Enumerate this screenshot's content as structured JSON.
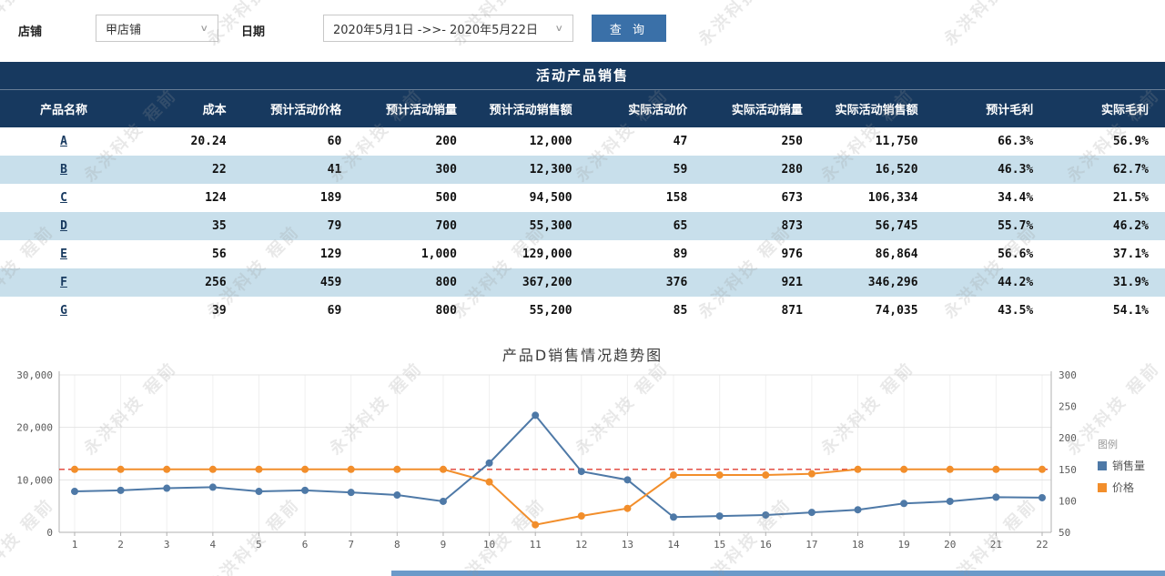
{
  "watermark": "永洪科技 程前",
  "colors": {
    "table_header_bg": "#17395f",
    "row_stripe": "#c8dfeb",
    "button_bg": "#3a70a8",
    "link": "#17395f"
  },
  "filters": {
    "store_label": "店铺",
    "store_value": "甲店铺",
    "date_label": "日期",
    "date_value": "2020年5月1日 ->>- 2020年5月22日",
    "query_button": "查 询"
  },
  "table": {
    "title": "活动产品销售",
    "columns": [
      "产品名称",
      "成本",
      "预计活动价格",
      "预计活动销量",
      "预计活动销售额",
      "实际活动价",
      "实际活动销量",
      "实际活动销售额",
      "预计毛利",
      "实际毛利"
    ],
    "rows": [
      [
        "A",
        "20.24",
        "60",
        "200",
        "12,000",
        "47",
        "250",
        "11,750",
        "66.3%",
        "56.9%"
      ],
      [
        "B",
        "22",
        "41",
        "300",
        "12,300",
        "59",
        "280",
        "16,520",
        "46.3%",
        "62.7%"
      ],
      [
        "C",
        "124",
        "189",
        "500",
        "94,500",
        "158",
        "673",
        "106,334",
        "34.4%",
        "21.5%"
      ],
      [
        "D",
        "35",
        "79",
        "700",
        "55,300",
        "65",
        "873",
        "56,745",
        "55.7%",
        "46.2%"
      ],
      [
        "E",
        "56",
        "129",
        "1,000",
        "129,000",
        "89",
        "976",
        "86,864",
        "56.6%",
        "37.1%"
      ],
      [
        "F",
        "256",
        "459",
        "800",
        "367,200",
        "376",
        "921",
        "346,296",
        "44.2%",
        "31.9%"
      ],
      [
        "G",
        "39",
        "69",
        "800",
        "55,200",
        "85",
        "871",
        "74,035",
        "43.5%",
        "54.1%"
      ]
    ]
  },
  "chart_data": {
    "type": "line",
    "title": "产品D销售情况趋势图",
    "legend_title": "图例",
    "x": [
      1,
      2,
      3,
      4,
      5,
      6,
      7,
      8,
      9,
      10,
      11,
      12,
      13,
      14,
      15,
      16,
      17,
      18,
      19,
      20,
      21,
      22
    ],
    "series": [
      {
        "name": "销售量",
        "axis": "left",
        "color": "#4e79a7",
        "values": [
          7800,
          8000,
          8400,
          8600,
          7800,
          8000,
          7600,
          7100,
          5900,
          13200,
          22300,
          11600,
          10000,
          2900,
          3100,
          3300,
          3800,
          4300,
          5500,
          5900,
          6700,
          6600
        ]
      },
      {
        "name": "价格",
        "axis": "right",
        "color": "#f28e2b",
        "values": [
          150,
          150,
          150,
          150,
          150,
          150,
          150,
          150,
          150,
          130,
          62,
          76,
          88,
          141,
          141,
          141,
          143,
          150,
          150,
          150,
          150,
          150
        ]
      }
    ],
    "left_axis": {
      "min": 0,
      "max": 30000,
      "ticks": [
        {
          "v": 0,
          "label": "0"
        },
        {
          "v": 10000,
          "label": "10,000"
        },
        {
          "v": 20000,
          "label": "20,000"
        },
        {
          "v": 30000,
          "label": "30,000"
        }
      ]
    },
    "right_axis": {
      "min": 50,
      "max": 300,
      "ticks": [
        {
          "v": 50,
          "label": "50"
        },
        {
          "v": 100,
          "label": "100"
        },
        {
          "v": 150,
          "label": "150"
        },
        {
          "v": 200,
          "label": "200"
        },
        {
          "v": 250,
          "label": "250"
        },
        {
          "v": 300,
          "label": "300"
        }
      ]
    },
    "reference_line": {
      "axis": "right",
      "value": 150,
      "color": "#e03c31",
      "style": "dashed"
    },
    "grid": true,
    "legend_position": "right"
  }
}
